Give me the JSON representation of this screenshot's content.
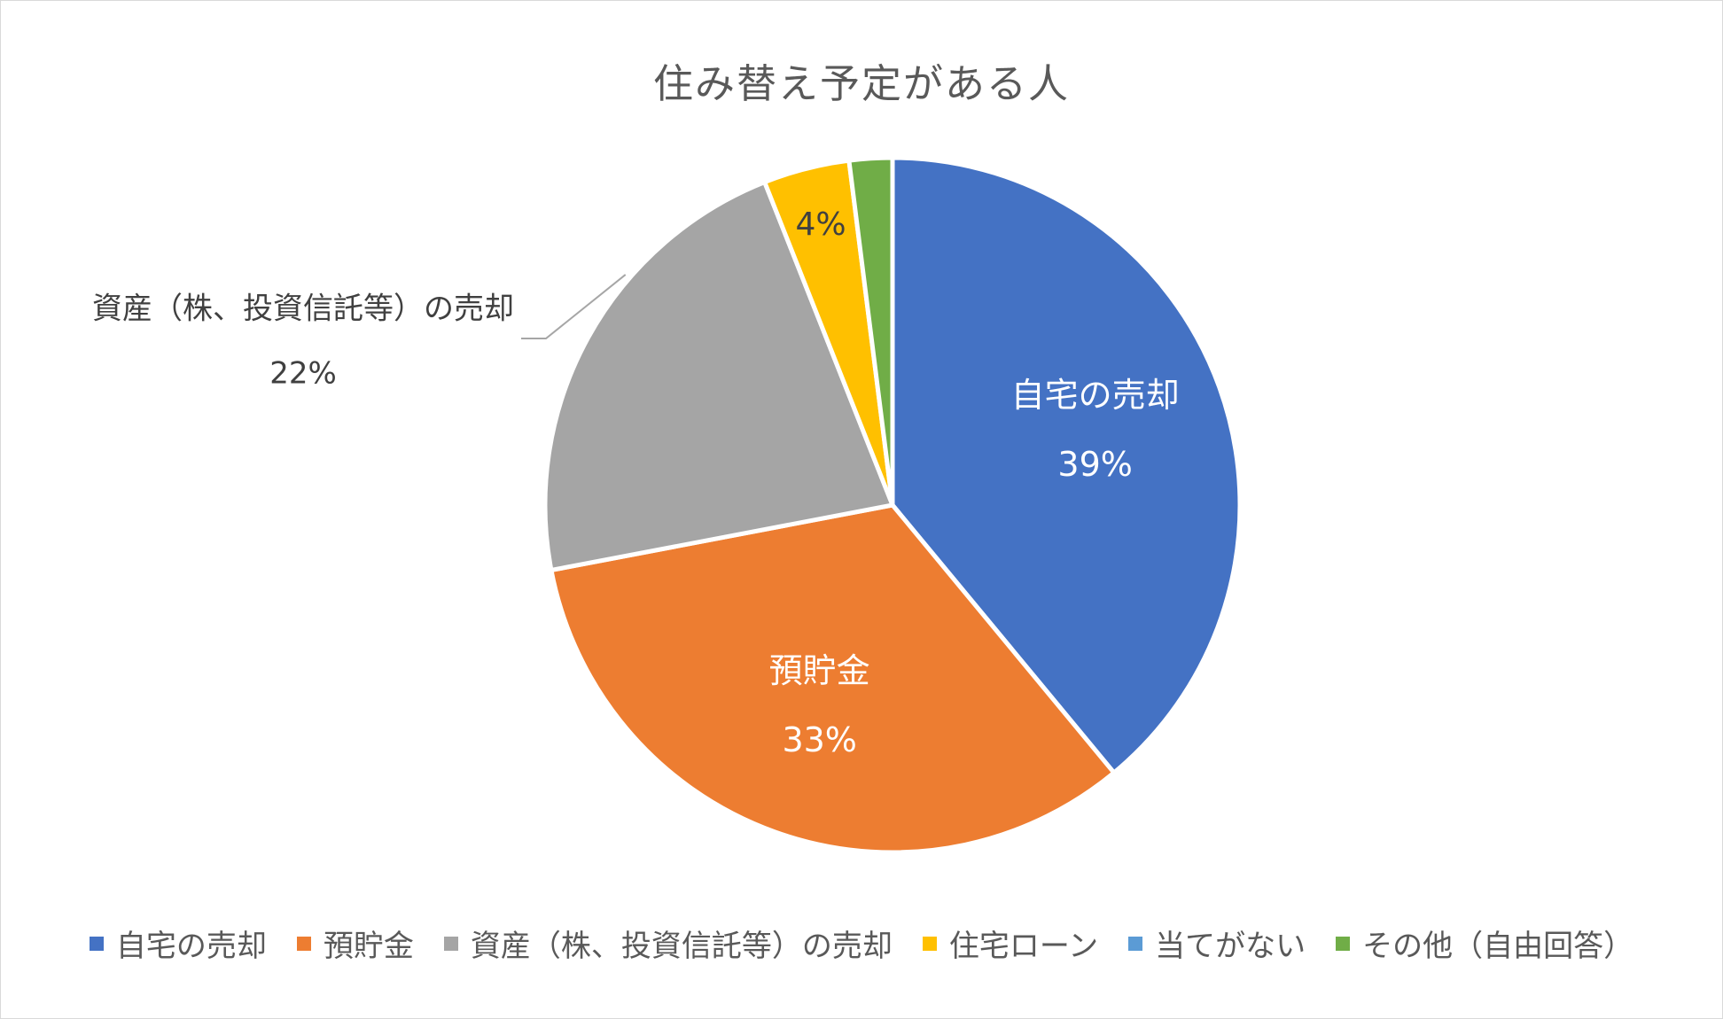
{
  "chart_data": {
    "type": "pie",
    "title": "住み替え予定がある人",
    "slices": [
      {
        "name": "自宅の売却",
        "value": 39,
        "label": "39%",
        "color": "#4472C4",
        "show_label": true,
        "label_placement": "inside",
        "label_color": "#ffffff"
      },
      {
        "name": "預貯金",
        "value": 33,
        "label": "33%",
        "color": "#ED7D31",
        "show_label": true,
        "label_placement": "inside",
        "label_color": "#ffffff"
      },
      {
        "name": "資産（株、投資信託等）の売却",
        "value": 22,
        "label": "22%",
        "color": "#A5A5A5",
        "show_label": true,
        "label_placement": "outside",
        "label_color": "#404040"
      },
      {
        "name": "住宅ローン",
        "value": 4,
        "label": "4%",
        "color": "#FFC000",
        "show_label": true,
        "label_placement": "inside-value-only",
        "label_color": "#404040"
      },
      {
        "name": "当てがない",
        "value": 0,
        "label": "",
        "color": "#5B9BD5",
        "show_label": false
      },
      {
        "name": "その他（自由回答）",
        "value": 2,
        "label": "",
        "color": "#70AD47",
        "show_label": false
      }
    ],
    "legend_position": "bottom"
  }
}
